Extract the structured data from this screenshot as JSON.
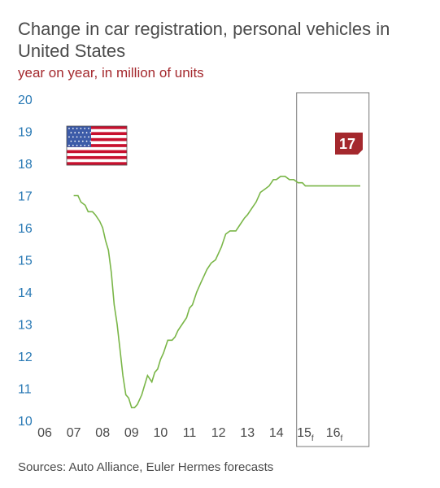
{
  "title": "Change in car registration, personal vehicles in United States",
  "subtitle": "year on year, in million of units",
  "source": "Sources: Auto Alliance, Euler Hermes forecasts",
  "badge_value": "17",
  "flag_icon": "us-flag-icon",
  "colors": {
    "title": "#4a4a4a",
    "subtitle": "#a4282d",
    "y_ticks": "#2a7ab5",
    "x_ticks": "#4a4a4a",
    "line": "#7ab648",
    "badge": "#a4282d",
    "forecast_box": "#777777"
  },
  "chart_data": {
    "type": "line",
    "title": "Change in car registration, personal vehicles in United States",
    "subtitle": "year on year, in million of units",
    "ylim": [
      10,
      20
    ],
    "xlim": [
      2006,
      2017.25
    ],
    "yticks": [
      "10",
      "11",
      "12",
      "13",
      "14",
      "15",
      "16",
      "17",
      "18",
      "19",
      "20"
    ],
    "xticks": [
      {
        "label": "06",
        "sub": "",
        "value": 2006
      },
      {
        "label": "07",
        "sub": "",
        "value": 2007
      },
      {
        "label": "08",
        "sub": "",
        "value": 2008
      },
      {
        "label": "09",
        "sub": "",
        "value": 2009
      },
      {
        "label": "10",
        "sub": "",
        "value": 2010
      },
      {
        "label": "11",
        "sub": "",
        "value": 2011
      },
      {
        "label": "12",
        "sub": "",
        "value": 2012
      },
      {
        "label": "13",
        "sub": "",
        "value": 2013
      },
      {
        "label": "14",
        "sub": "",
        "value": 2014
      },
      {
        "label": "15",
        "sub": "f",
        "value": 2015
      },
      {
        "label": "16",
        "sub": "f",
        "value": 2016
      }
    ],
    "forecast_range": [
      2014.7,
      2017.2
    ],
    "series": [
      {
        "x": [
          2007.0,
          2007.15,
          2007.25,
          2007.4,
          2007.5,
          2007.65,
          2007.75,
          2007.9,
          2008.0,
          2008.1,
          2008.2,
          2008.3,
          2008.4,
          2008.5,
          2008.6,
          2008.7,
          2008.8,
          2008.9,
          2009.0,
          2009.1,
          2009.2,
          2009.35,
          2009.45,
          2009.55,
          2009.7,
          2009.8,
          2009.9,
          2010.0,
          2010.1,
          2010.25,
          2010.4,
          2010.5,
          2010.6,
          2010.75,
          2010.9,
          2011.0,
          2011.1,
          2011.25,
          2011.4,
          2011.5,
          2011.6,
          2011.75,
          2011.9,
          2012.0,
          2012.1,
          2012.25,
          2012.4,
          2012.5,
          2012.6,
          2012.75,
          2012.9,
          2013.0,
          2013.15,
          2013.3,
          2013.45,
          2013.6,
          2013.75,
          2013.9,
          2014.0,
          2014.15,
          2014.3,
          2014.45,
          2014.6,
          2014.75,
          2014.9,
          2015.0,
          2015.15,
          2015.3,
          2015.45,
          2015.6,
          2015.75,
          2015.9,
          2016.0,
          2016.15,
          2016.3,
          2016.45,
          2016.6,
          2016.75,
          2016.9
        ],
        "values": [
          17.0,
          17.0,
          16.8,
          16.7,
          16.5,
          16.5,
          16.4,
          16.2,
          16.0,
          15.6,
          15.3,
          14.6,
          13.6,
          13.0,
          12.2,
          11.4,
          10.8,
          10.7,
          10.4,
          10.4,
          10.5,
          10.8,
          11.1,
          11.4,
          11.2,
          11.5,
          11.6,
          11.9,
          12.1,
          12.5,
          12.5,
          12.6,
          12.8,
          13.0,
          13.2,
          13.5,
          13.6,
          14.0,
          14.3,
          14.5,
          14.7,
          14.9,
          15.0,
          15.2,
          15.4,
          15.8,
          15.9,
          15.9,
          15.9,
          16.1,
          16.3,
          16.4,
          16.6,
          16.8,
          17.1,
          17.2,
          17.3,
          17.5,
          17.5,
          17.6,
          17.6,
          17.5,
          17.5,
          17.4,
          17.4,
          17.3,
          17.3,
          17.3,
          17.3,
          17.3,
          17.3,
          17.3,
          17.3,
          17.3,
          17.3,
          17.3,
          17.3,
          17.3,
          17.3
        ]
      }
    ]
  }
}
